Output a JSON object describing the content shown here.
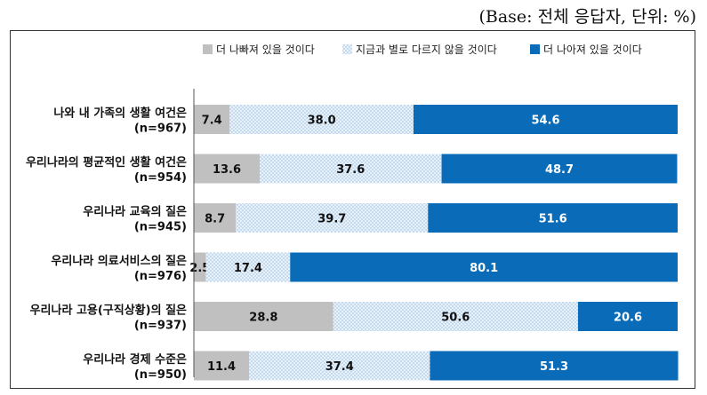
{
  "base_note": "(Base: 전체 응답자, 단위: %)",
  "colors": {
    "worse": "#c0c0c0",
    "same": "#dbe9f7",
    "better": "#0a6cb8"
  },
  "chart_data": {
    "type": "bar",
    "orientation": "horizontal",
    "stacked": true,
    "title": "",
    "xlabel": "",
    "ylabel": "",
    "xlim": [
      0,
      100
    ],
    "grid": false,
    "legend_position": "top",
    "categories": [
      "나와 내 가족의 생활 여건은",
      "우리나라의 평균적인 생활 여건은",
      "우리나라 교육의 질은",
      "우리나라 의료서비스의 질은",
      "우리나라 고용(구직상황)의 질은",
      "우리나라 경제 수준은"
    ],
    "sample_sizes": [
      "(n=967)",
      "(n=954)",
      "(n=945)",
      "(n=976)",
      "(n=937)",
      "(n=950)"
    ],
    "series": [
      {
        "name": "더 나빠져 있을 것이다",
        "values": [
          7.4,
          13.6,
          8.7,
          2.5,
          28.8,
          11.4
        ]
      },
      {
        "name": "지금과 별로 다르지 않을 것이다",
        "values": [
          38.0,
          37.6,
          39.7,
          17.4,
          50.6,
          37.4
        ]
      },
      {
        "name": "더 나아져 있을 것이다",
        "values": [
          54.6,
          48.7,
          51.6,
          80.1,
          20.6,
          51.3
        ]
      }
    ]
  }
}
